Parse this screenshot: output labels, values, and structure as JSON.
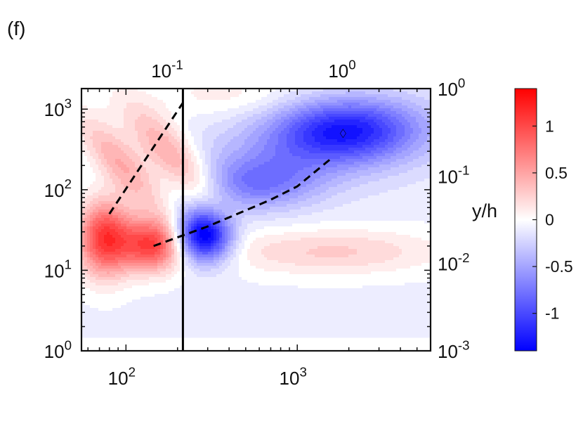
{
  "panel_label": "(f)",
  "chart_data": {
    "type": "heatmap",
    "title": "",
    "xlabel": "",
    "ylabel": "",
    "xscale": "log",
    "yscale": "log",
    "xlim": [
      55,
      6000
    ],
    "ylim": [
      1,
      1800
    ],
    "x_ticks": [
      {
        "value": 100,
        "base": "10",
        "exp": "2"
      },
      {
        "value": 1000,
        "base": "10",
        "exp": "3"
      }
    ],
    "y_ticks": [
      {
        "value": 1,
        "base": "10",
        "exp": "0"
      },
      {
        "value": 10,
        "base": "10",
        "exp": "1"
      },
      {
        "value": 100,
        "base": "10",
        "exp": "2"
      },
      {
        "value": 1000,
        "base": "10",
        "exp": "3"
      }
    ],
    "top_axis": {
      "scale": "log",
      "ticks": [
        {
          "value": 0.1,
          "base": "10",
          "exp": "-1"
        },
        {
          "value": 1,
          "base": "10",
          "exp": "0"
        }
      ]
    },
    "right_axis": {
      "label": "y/h",
      "scale": "log",
      "ticks": [
        {
          "value": 0.001,
          "base": "10",
          "exp": "-3"
        },
        {
          "value": 0.01,
          "base": "10",
          "exp": "-2"
        },
        {
          "value": 0.1,
          "base": "10",
          "exp": "-1"
        },
        {
          "value": 1,
          "base": "10",
          "exp": "0"
        }
      ]
    },
    "colorbar": {
      "range": [
        -1.4,
        1.4
      ],
      "colors": [
        "#0000ff",
        "#ffffff",
        "#ff0000"
      ],
      "ticks": [
        {
          "value": 1,
          "label": "1"
        },
        {
          "value": 0.5,
          "label": "0.5"
        },
        {
          "value": 0,
          "label": "0"
        },
        {
          "value": -0.5,
          "label": "-0.5"
        },
        {
          "value": -1,
          "label": "-1"
        }
      ]
    },
    "background_level": -0.08,
    "data_floor_y": 1.45,
    "vertical_line_x": 215,
    "blobs": [
      {
        "name": "positive-ridge-left",
        "x": 75,
        "y": 25,
        "peak": 1.15,
        "sx": 0.11,
        "sy": 0.33,
        "angle": 0
      },
      {
        "name": "positive-ridge-left-upper",
        "x": 95,
        "y": 200,
        "peak": 0.55,
        "sx": 0.1,
        "sy": 0.45,
        "angle": 0.35
      },
      {
        "name": "positive-ridge-middle",
        "x": 145,
        "y": 21,
        "peak": 1.15,
        "sx": 0.13,
        "sy": 0.23,
        "angle": 0
      },
      {
        "name": "positive-ridge-middle-upper",
        "x": 190,
        "y": 250,
        "peak": 0.6,
        "sx": 0.11,
        "sy": 0.5,
        "angle": 0.35
      },
      {
        "name": "positive-top-band",
        "x": 400,
        "y": 1500,
        "peak": 0.18,
        "sx": 0.3,
        "sy": 0.2,
        "angle": 0
      },
      {
        "name": "positive-lower-right",
        "x": 1600,
        "y": 17,
        "peak": 0.35,
        "sx": 0.45,
        "sy": 0.2,
        "angle": 0
      },
      {
        "name": "negative-core",
        "x": 280,
        "y": 27,
        "peak": -1.5,
        "sx": 0.12,
        "sy": 0.23,
        "angle": 0
      },
      {
        "name": "negative-mid",
        "x": 600,
        "y": 120,
        "peak": -0.55,
        "sx": 0.25,
        "sy": 0.23,
        "angle": 0.6
      },
      {
        "name": "negative-outer",
        "x": 1900,
        "y": 550,
        "peak": -1.0,
        "sx": 0.3,
        "sy": 0.27,
        "angle": 0.25
      },
      {
        "name": "negative-outer-halo",
        "x": 1200,
        "y": 300,
        "peak": -0.3,
        "sx": 0.55,
        "sy": 0.35,
        "angle": 0.4
      }
    ],
    "dashed_lines": [
      {
        "name": "dashed-line-upper",
        "points": [
          [
            80,
            50
          ],
          [
            215,
            1200
          ]
        ]
      },
      {
        "name": "dashed-line-lower",
        "points": [
          [
            145,
            20
          ],
          [
            300,
            35
          ],
          [
            700,
            75
          ],
          [
            1000,
            110
          ],
          [
            1600,
            250
          ]
        ]
      }
    ],
    "marker": {
      "name": "peak-marker",
      "x": 1850,
      "y": 500
    }
  }
}
